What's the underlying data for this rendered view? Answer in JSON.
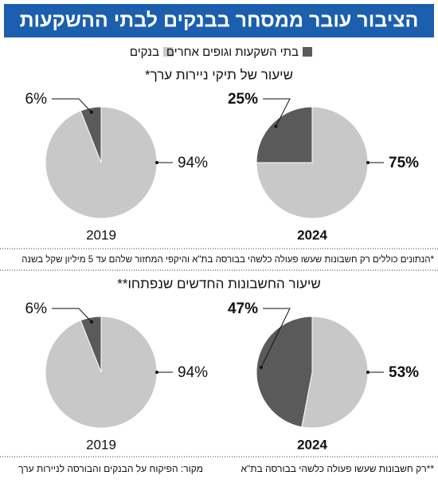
{
  "title": "הציבור עובר ממסחר בבנקים לבתי ההשקעות",
  "legend": [
    {
      "name": "בנקים",
      "color": "#c8c8c8"
    },
    {
      "name": "בתי השקעות וגופים אחרים",
      "color": "#5a5a5a"
    }
  ],
  "sections": [
    {
      "title": "שיעור של תיקי ניירות ערך*",
      "note": "*הנתונים כוללים רק חשבונות שעשו פעולה כלשהי בבורסה בת\"א והיקפי המחזור שלהם עד 5 מיליון שקל בשנה"
    },
    {
      "title": "שיעור החשבונות החדשים שנפתחו**",
      "note": "**רק חשבונות שעשו פעולה כלשהי בבורסה בת\"א"
    }
  ],
  "source": "מקור: הפיקוח על הבנקים והבורסה לניירות ערך",
  "chart_data": [
    {
      "type": "pie",
      "title": "2019",
      "values": [
        94,
        6
      ],
      "value_labels": [
        "94%",
        "6%"
      ]
    },
    {
      "type": "pie",
      "title": "2024",
      "values": [
        75,
        25
      ],
      "value_labels": [
        "75%",
        "25%"
      ]
    },
    {
      "type": "pie",
      "title": "2019",
      "values": [
        94,
        6
      ],
      "value_labels": [
        "94%",
        "6%"
      ]
    },
    {
      "type": "pie",
      "title": "2024",
      "values": [
        53,
        47
      ],
      "value_labels": [
        "53%",
        "47%"
      ]
    }
  ]
}
